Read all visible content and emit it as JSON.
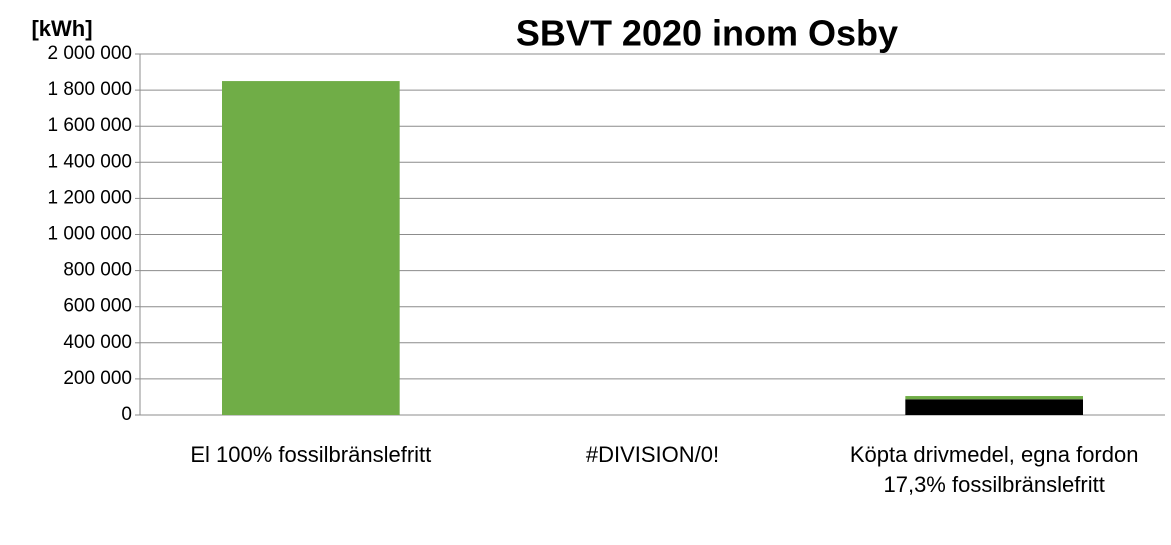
{
  "chart_data": {
    "type": "stacked_bar",
    "title": "SBVT 2020 inom Osby",
    "y_label": "[kWh]",
    "categories": [
      "El 100% fossilbränslefritt",
      "#DIVISION/0!",
      "Köpta drivmedel, egna fordon 17,3% fossilbränslefritt"
    ],
    "series": [
      {
        "color": "#000000",
        "values": [
          0,
          0,
          87000
        ]
      },
      {
        "color": "#70ad47",
        "values": [
          1850000,
          0,
          18000
        ]
      }
    ],
    "ylim": [
      0,
      2000000
    ],
    "yticks": [
      0,
      {
        "value": 200000,
        "label": "200 000"
      },
      {
        "value": 400000,
        "label": "400 000"
      },
      {
        "value": 600000,
        "label": "600 000"
      },
      {
        "value": 800000,
        "label": "800 000"
      },
      {
        "value": 1000000,
        "label": "1 000 000"
      },
      {
        "value": 1200000,
        "label": "1 200 000"
      },
      {
        "value": 1400000,
        "label": "1 400 000"
      },
      {
        "value": 1600000,
        "label": "1 600 000"
      },
      {
        "value": 1800000,
        "label": "1 800 000"
      },
      {
        "value": 2000000,
        "label": "2 000 000"
      }
    ],
    "grid": true
  }
}
